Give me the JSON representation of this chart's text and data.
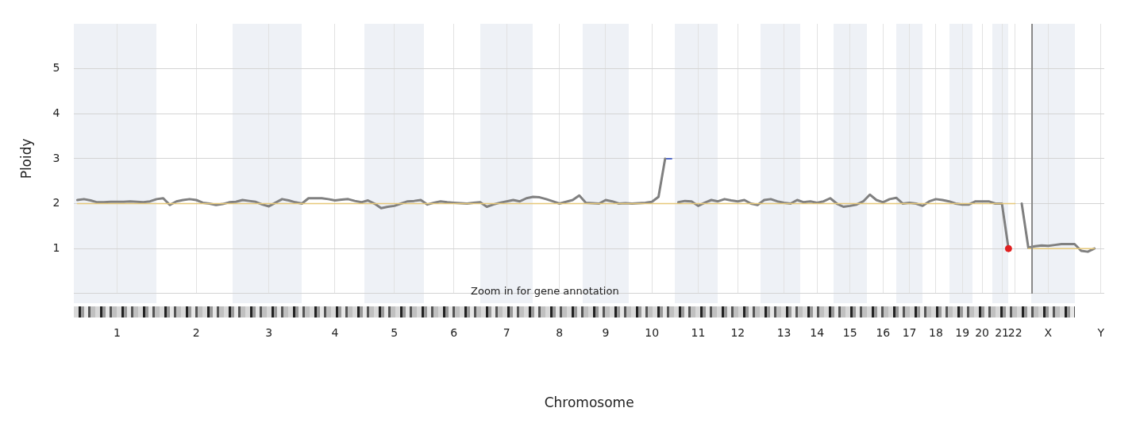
{
  "chart_data": {
    "type": "line",
    "xlabel": "Chromosome",
    "ylabel": "Ploidy",
    "annotations": [
      "Zoom in for gene annotation"
    ],
    "categories": [
      null,
      null,
      null,
      null,
      null,
      null,
      "1",
      null,
      null,
      null,
      null,
      null,
      null,
      null,
      null,
      null,
      null,
      null,
      "2",
      null,
      null,
      null,
      null,
      null,
      null,
      null,
      null,
      null,
      null,
      "3",
      null,
      null,
      null,
      null,
      null,
      null,
      null,
      null,
      null,
      "4",
      null,
      null,
      null,
      null,
      null,
      null,
      null,
      null,
      "5",
      null,
      null,
      null,
      null,
      null,
      null,
      null,
      null,
      "6",
      null,
      null,
      null,
      null,
      null,
      null,
      null,
      "7",
      null,
      null,
      null,
      null,
      null,
      null,
      null,
      "8",
      null,
      null,
      null,
      null,
      null,
      null,
      "9",
      null,
      null,
      null,
      null,
      null,
      null,
      "10",
      null,
      null,
      null,
      null,
      null,
      null,
      "11",
      null,
      null,
      null,
      null,
      null,
      "12",
      null,
      null,
      null,
      null,
      null,
      null,
      "13",
      null,
      null,
      null,
      null,
      "14",
      null,
      null,
      null,
      null,
      "15",
      null,
      null,
      null,
      null,
      "16",
      null,
      null,
      null,
      "17",
      null,
      null,
      null,
      "18",
      null,
      null,
      null,
      "19",
      null,
      null,
      "20",
      null,
      null,
      "21",
      null,
      "22",
      null,
      null,
      null,
      null,
      "X",
      null,
      null,
      null,
      null,
      null,
      null,
      null,
      "Y"
    ],
    "ylim": [
      0,
      6
    ],
    "yticks": [
      {
        "value": 0,
        "label": null
      },
      1,
      2,
      3,
      4,
      5
    ],
    "grid": true,
    "legend": false,
    "marker": "none",
    "line_style": "solid",
    "series": [
      {
        "type": "line",
        "color": "#e6c878",
        "values": [
          2,
          2,
          2,
          2,
          2,
          2,
          2,
          2,
          2,
          2,
          2,
          2,
          2,
          2,
          2,
          2,
          2,
          2,
          2,
          2,
          2,
          2,
          2,
          2,
          2,
          2,
          2,
          2,
          2,
          2,
          2,
          2,
          2,
          2,
          2,
          2,
          2,
          2,
          2,
          2,
          2,
          2,
          2,
          2,
          2,
          2,
          2,
          2,
          2,
          2,
          2,
          2,
          2,
          2,
          2,
          2,
          2,
          2,
          2,
          2,
          2,
          2,
          2,
          2,
          2,
          2,
          2,
          2,
          2,
          2,
          2,
          2,
          2,
          2,
          2,
          2,
          2,
          2,
          2,
          2,
          2,
          2,
          2,
          2,
          2,
          2,
          2,
          2,
          2,
          2,
          2,
          2,
          2,
          2,
          2,
          2,
          2,
          2,
          2,
          2,
          2,
          2,
          2,
          2,
          2,
          2,
          2,
          2,
          2,
          2,
          2,
          2,
          2,
          2,
          2,
          2,
          2,
          2,
          2,
          2,
          2,
          2,
          2,
          2,
          2,
          2,
          2,
          2,
          2,
          2,
          2,
          2,
          2,
          2,
          2,
          2,
          2,
          2,
          2,
          2,
          2,
          2,
          2,
          null,
          1,
          1,
          1,
          1,
          1,
          1,
          1,
          1,
          1,
          1,
          1,
          null
        ]
      },
      {
        "type": "line",
        "color": "#808080",
        "values": [
          2.08,
          2.1,
          2.07,
          2.03,
          2.03,
          2.04,
          2.04,
          2.04,
          2.05,
          2.04,
          2.03,
          2.05,
          2.1,
          2.12,
          1.97,
          2.05,
          2.08,
          2.1,
          2.08,
          2.02,
          2.0,
          1.97,
          1.99,
          2.03,
          2.04,
          2.08,
          2.06,
          2.04,
          1.98,
          1.94,
          2.02,
          2.1,
          2.07,
          2.03,
          2.0,
          2.12,
          2.12,
          2.12,
          2.1,
          2.07,
          2.09,
          2.1,
          2.06,
          2.03,
          2.07,
          2.0,
          1.9,
          1.93,
          1.95,
          2.0,
          2.05,
          2.06,
          2.08,
          1.98,
          2.02,
          2.05,
          2.03,
          2.02,
          2.01,
          2.0,
          2.02,
          2.03,
          1.93,
          1.98,
          2.02,
          2.05,
          2.08,
          2.05,
          2.12,
          2.15,
          2.14,
          2.1,
          2.05,
          2.0,
          2.04,
          2.08,
          2.18,
          2.02,
          2.01,
          2.0,
          2.08,
          2.05,
          2.0,
          2.01,
          2.0,
          2.01,
          2.02,
          2.04,
          2.15,
          3.0,
          null,
          2.03,
          2.06,
          2.05,
          1.95,
          2.02,
          2.08,
          2.05,
          2.1,
          2.07,
          2.05,
          2.08,
          2.0,
          1.97,
          2.08,
          2.1,
          2.05,
          2.02,
          2.0,
          2.08,
          2.03,
          2.05,
          2.02,
          2.05,
          2.12,
          2.0,
          1.93,
          1.95,
          1.98,
          2.05,
          2.2,
          2.08,
          2.03,
          2.1,
          2.13,
          2.0,
          2.02,
          2.0,
          1.95,
          2.05,
          2.1,
          2.08,
          2.05,
          2.0,
          1.98,
          1.98,
          2.05,
          2.05,
          2.05,
          2.0,
          2.0,
          1.0,
          null,
          2.0,
          1.02,
          1.05,
          1.07,
          1.06,
          1.08,
          1.1,
          1.1,
          1.1,
          0.95,
          0.93,
          1.0,
          null
        ]
      },
      {
        "type": "line",
        "color": "#1f3fbf",
        "values": [
          null,
          null,
          null,
          null,
          null,
          null,
          null,
          null,
          null,
          null,
          null,
          null,
          null,
          null,
          null,
          null,
          null,
          null,
          null,
          null,
          null,
          null,
          null,
          null,
          null,
          null,
          null,
          null,
          null,
          null,
          null,
          null,
          null,
          null,
          null,
          null,
          null,
          null,
          null,
          null,
          null,
          null,
          null,
          null,
          null,
          null,
          null,
          null,
          null,
          null,
          null,
          null,
          null,
          null,
          null,
          null,
          null,
          null,
          null,
          null,
          null,
          null,
          null,
          null,
          null,
          null,
          null,
          null,
          null,
          null,
          null,
          null,
          null,
          null,
          null,
          null,
          null,
          null,
          null,
          null,
          null,
          null,
          null,
          null,
          null,
          null,
          null,
          null,
          null,
          3,
          3,
          null,
          null,
          null,
          null,
          null,
          null,
          null,
          null,
          null,
          null,
          null,
          null,
          null,
          null,
          null,
          null,
          null,
          null,
          null,
          null,
          null,
          null,
          null,
          null,
          null,
          null,
          null,
          null,
          null,
          null,
          null,
          null,
          null,
          null,
          null,
          null,
          null,
          null,
          null,
          null,
          null,
          null,
          null,
          null,
          null,
          null,
          null,
          null,
          null,
          null,
          null,
          null,
          null,
          null,
          null,
          null,
          null,
          null,
          null,
          null,
          null,
          null,
          null,
          null,
          null
        ]
      },
      {
        "type": "scatter",
        "color": "#e02020",
        "marker": "circle",
        "values": [
          null,
          null,
          null,
          null,
          null,
          null,
          null,
          null,
          null,
          null,
          null,
          null,
          null,
          null,
          null,
          null,
          null,
          null,
          null,
          null,
          null,
          null,
          null,
          null,
          null,
          null,
          null,
          null,
          null,
          null,
          null,
          null,
          null,
          null,
          null,
          null,
          null,
          null,
          null,
          null,
          null,
          null,
          null,
          null,
          null,
          null,
          null,
          null,
          null,
          null,
          null,
          null,
          null,
          null,
          null,
          null,
          null,
          null,
          null,
          null,
          null,
          null,
          null,
          null,
          null,
          null,
          null,
          null,
          null,
          null,
          null,
          null,
          null,
          null,
          null,
          null,
          null,
          null,
          null,
          null,
          null,
          null,
          null,
          null,
          null,
          null,
          null,
          null,
          null,
          null,
          null,
          null,
          null,
          null,
          null,
          null,
          null,
          null,
          null,
          null,
          null,
          null,
          null,
          null,
          null,
          null,
          null,
          null,
          null,
          null,
          null,
          null,
          null,
          null,
          null,
          null,
          null,
          null,
          null,
          null,
          null,
          null,
          null,
          null,
          null,
          null,
          null,
          null,
          null,
          null,
          null,
          null,
          null,
          null,
          null,
          null,
          null,
          null,
          null,
          null,
          null,
          1,
          null,
          null,
          null,
          null,
          null,
          null,
          null,
          null,
          null,
          null,
          null,
          null,
          null,
          null
        ]
      }
    ]
  }
}
